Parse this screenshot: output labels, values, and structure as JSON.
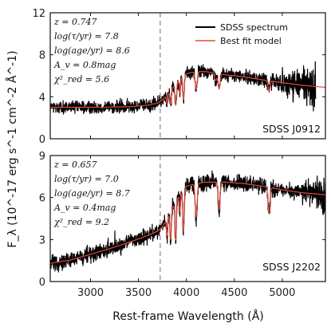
{
  "chart_data": {
    "type": "line",
    "xlabel": "Rest-frame Wavelength (Å)",
    "ylabel": "F_λ (10^-17 erg s^-1 cm^-2 Å^-1)",
    "xlim": [
      2580,
      5450
    ],
    "x_ticks": [
      3000,
      3500,
      4000,
      4500,
      5000
    ],
    "vline_x": 3727,
    "legend": {
      "placement": "top-right",
      "entries": [
        {
          "name": "SDSS spectrum",
          "color": "#000000"
        },
        {
          "name": "Best fit model",
          "color": "#e8483b"
        }
      ]
    },
    "panels": [
      {
        "object": "SDSS J0912",
        "ylim": [
          0,
          12
        ],
        "y_ticks": [
          0,
          4,
          8,
          12
        ],
        "annotations": [
          "z = 0.747",
          "log(τ/yr) = 7.8",
          "log(age/yr) = 8.6",
          "A_v = 0.8mag",
          "χ²_red = 5.6"
        ],
        "obs_max_x": 5350,
        "model_max_x": 5450,
        "model_knots": [
          [
            2580,
            3.0
          ],
          [
            3000,
            3.0
          ],
          [
            3400,
            3.05
          ],
          [
            3600,
            3.2
          ],
          [
            3700,
            3.4
          ],
          [
            3750,
            3.7
          ],
          [
            3800,
            4.2
          ],
          [
            3850,
            4.8
          ],
          [
            3900,
            5.3
          ],
          [
            3950,
            5.9
          ],
          [
            4000,
            6.2
          ],
          [
            4100,
            6.4
          ],
          [
            4200,
            6.4
          ],
          [
            4400,
            6.1
          ],
          [
            4600,
            5.9
          ],
          [
            4800,
            5.6
          ],
          [
            5000,
            5.35
          ],
          [
            5200,
            5.1
          ],
          [
            5450,
            4.9
          ]
        ],
        "absorption_lines": [
          {
            "x": 3798,
            "depth": 0.8,
            "width": 7
          },
          {
            "x": 3835,
            "depth": 1.3,
            "width": 7
          },
          {
            "x": 3889,
            "depth": 1.9,
            "width": 8
          },
          {
            "x": 3933,
            "depth": 1.3,
            "width": 6
          },
          {
            "x": 3970,
            "depth": 2.3,
            "width": 8
          },
          {
            "x": 4102,
            "depth": 1.7,
            "width": 10
          },
          {
            "x": 4305,
            "depth": 0.7,
            "width": 12
          },
          {
            "x": 4341,
            "depth": 1.4,
            "width": 10
          },
          {
            "x": 4861,
            "depth": 1.0,
            "width": 10
          }
        ],
        "noise": {
          "base": 0.3,
          "red_start": 4800,
          "red_gain": 0.9
        }
      },
      {
        "object": "SDSS J2202",
        "ylim": [
          0,
          9
        ],
        "y_ticks": [
          0,
          3,
          6,
          9
        ],
        "annotations": [
          "z = 0.657",
          "log(τ/yr) = 7.0",
          "log(age/yr) = 8.7",
          "A_v = 0.4mag",
          "χ²_red = 9.2"
        ],
        "obs_max_x": 5450,
        "model_max_x": 5450,
        "model_knots": [
          [
            2580,
            1.3
          ],
          [
            2800,
            1.55
          ],
          [
            3000,
            1.95
          ],
          [
            3200,
            2.35
          ],
          [
            3400,
            2.8
          ],
          [
            3600,
            3.3
          ],
          [
            3700,
            3.6
          ],
          [
            3750,
            3.9
          ],
          [
            3800,
            4.5
          ],
          [
            3850,
            5.2
          ],
          [
            3900,
            5.9
          ],
          [
            3950,
            6.4
          ],
          [
            4000,
            6.8
          ],
          [
            4100,
            7.0
          ],
          [
            4200,
            7.1
          ],
          [
            4400,
            7.1
          ],
          [
            4600,
            7.0
          ],
          [
            4800,
            6.8
          ],
          [
            5000,
            6.55
          ],
          [
            5200,
            6.35
          ],
          [
            5450,
            6.2
          ]
        ],
        "absorption_lines": [
          {
            "x": 3798,
            "depth": 1.2,
            "width": 7
          },
          {
            "x": 3835,
            "depth": 2.0,
            "width": 7
          },
          {
            "x": 3889,
            "depth": 2.8,
            "width": 8
          },
          {
            "x": 3933,
            "depth": 1.3,
            "width": 6
          },
          {
            "x": 3970,
            "depth": 3.0,
            "width": 8
          },
          {
            "x": 4102,
            "depth": 2.4,
            "width": 10
          },
          {
            "x": 4341,
            "depth": 2.0,
            "width": 10
          },
          {
            "x": 4861,
            "depth": 1.8,
            "width": 10
          }
        ],
        "noise": {
          "base": 0.28,
          "red_start": 5100,
          "red_gain": 0.3
        }
      }
    ]
  }
}
